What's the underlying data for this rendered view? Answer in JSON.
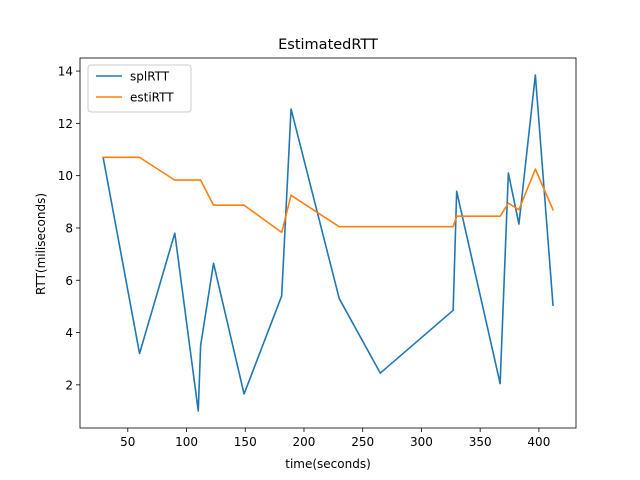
{
  "chart_data": {
    "type": "line",
    "title": "EstimatedRTT",
    "xlabel": "time(seconds)",
    "ylabel": "RTT(miliseconds)",
    "xlim": [
      9.3,
      431.6
    ],
    "ylim": [
      0.35,
      14.5
    ],
    "xticks": [
      50,
      100,
      150,
      200,
      250,
      300,
      350,
      400
    ],
    "xtick_labels": [
      "50",
      "100",
      "150",
      "200",
      "250",
      "300",
      "350",
      "400"
    ],
    "yticks": [
      2,
      4,
      6,
      8,
      10,
      12,
      14
    ],
    "ytick_labels": [
      "2",
      "4",
      "6",
      "8",
      "10",
      "12",
      "14"
    ],
    "grid": false,
    "legend_position": "top-left",
    "series": [
      {
        "name": "splRTT",
        "color": "#1f77b4",
        "x": [
          29,
          60,
          90,
          110,
          112,
          123,
          149,
          181,
          189,
          230,
          265,
          327,
          330,
          367,
          374,
          383,
          397,
          412
        ],
        "y": [
          10.7,
          3.2,
          7.8,
          1.0,
          3.5,
          6.65,
          1.65,
          5.4,
          12.55,
          5.3,
          2.45,
          4.85,
          9.4,
          2.05,
          10.1,
          8.15,
          13.85,
          5.05
        ]
      },
      {
        "name": "estiRTT",
        "color": "#ff7f0e",
        "x": [
          29,
          60,
          90,
          112,
          123,
          149,
          181,
          189,
          230,
          327,
          330,
          367,
          374,
          383,
          397,
          412
        ],
        "y": [
          10.7,
          10.7,
          9.83,
          9.83,
          8.87,
          8.87,
          7.83,
          9.25,
          8.05,
          8.05,
          8.45,
          8.45,
          8.95,
          8.7,
          10.25,
          8.7
        ]
      }
    ]
  }
}
